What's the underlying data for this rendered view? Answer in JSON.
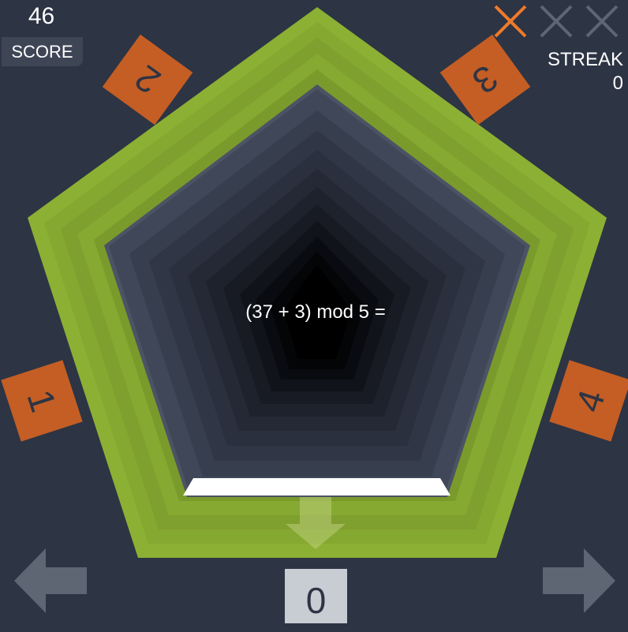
{
  "score": {
    "value": "46",
    "label": "SCORE"
  },
  "strikes": {
    "used": 1,
    "total": 3,
    "symbol": "X",
    "active_color": "#f07a2a",
    "inactive_color": "#5e6573"
  },
  "streak": {
    "label": "STREAK",
    "value": "0"
  },
  "question": {
    "text": "(37 + 3) mod 5 ="
  },
  "answer_options": [
    "0",
    "1",
    "2",
    "3",
    "4"
  ],
  "selected_answer": "0",
  "controls": {
    "left_icon": "arrow-left-icon",
    "right_icon": "arrow-right-icon"
  },
  "colors": {
    "background": "#2d3444",
    "frame_green": "#8cb033",
    "frame_green_dark": "#7a9b2c",
    "tile_orange": "#c45e24",
    "answer_slot": "#c8ccd3",
    "highlight": "#ffffff"
  }
}
